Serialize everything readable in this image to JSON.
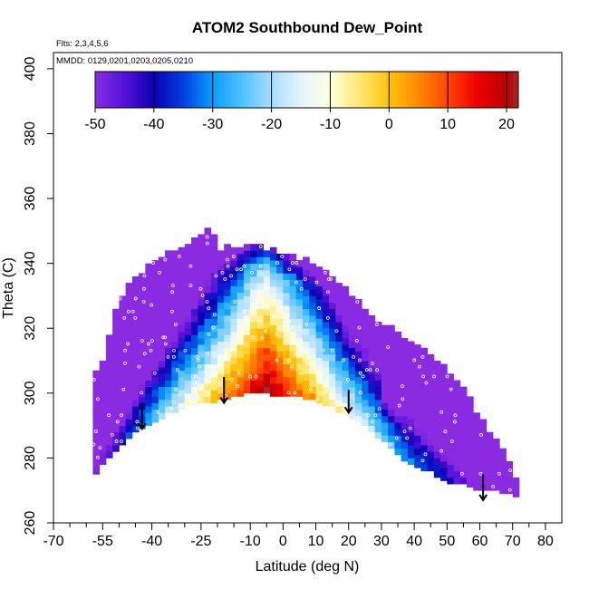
{
  "chart_data": {
    "type": "heatmap",
    "title": "ATOM2 Southbound Dew_Point",
    "flights_label": "Flts: 2,3,4,5,6",
    "dates_label": "MMDD: 0129,0201,0203,0205,0210",
    "xlabel": "Latitude (deg N)",
    "ylabel": "Theta (C)",
    "xlim": [
      -70,
      85
    ],
    "ylim": [
      260,
      405
    ],
    "x_major_ticks": [
      -70,
      -55,
      -40,
      -25,
      -10,
      0,
      10,
      20,
      30,
      40,
      50,
      60,
      70,
      80
    ],
    "x_tick_labels": [
      "-70",
      "-55",
      "-40",
      "-25",
      "-10",
      "0",
      "10",
      "20",
      "30",
      "40",
      "50",
      "60",
      "70",
      "80"
    ],
    "x_minor_ticks": [
      -65,
      -60,
      -50,
      -45,
      -35,
      -30,
      -20,
      -15,
      -5,
      5,
      15,
      25,
      35,
      45,
      55,
      65,
      75
    ],
    "y_ticks": [
      260,
      280,
      300,
      320,
      340,
      360,
      380,
      400
    ],
    "y_tick_labels": [
      "260",
      "280",
      "300",
      "320",
      "340",
      "360",
      "380",
      "400"
    ],
    "colorbar": {
      "range": [
        -50,
        22
      ],
      "ticks": [
        -50,
        -40,
        -30,
        -20,
        -10,
        0,
        10,
        20
      ],
      "tick_labels": [
        "-50",
        "-40",
        "-30",
        "-20",
        "-10",
        "0",
        "10",
        "20"
      ],
      "stops": [
        {
          "v": -50,
          "c": "#8a2be2"
        },
        {
          "v": -45,
          "c": "#5512d8"
        },
        {
          "v": -40,
          "c": "#0a00b4"
        },
        {
          "v": -35,
          "c": "#0040e0"
        },
        {
          "v": -30,
          "c": "#0a9cff"
        },
        {
          "v": -25,
          "c": "#4fc2ff"
        },
        {
          "v": -20,
          "c": "#a8dcff"
        },
        {
          "v": -15,
          "c": "#e4f4ff"
        },
        {
          "v": -10,
          "c": "#ffffe0"
        },
        {
          "v": -5,
          "c": "#ffe870"
        },
        {
          "v": 0,
          "c": "#ffc30a"
        },
        {
          "v": 5,
          "c": "#ff8a00"
        },
        {
          "v": 10,
          "c": "#ff4500"
        },
        {
          "v": 15,
          "c": "#ee0000"
        },
        {
          "v": 20,
          "c": "#b80000"
        },
        {
          "v": 22,
          "c": "#a52a2a"
        }
      ]
    },
    "domain": {
      "lat_range": [
        -58,
        72
      ],
      "lat_step": 2,
      "theta_step": 2,
      "top_boundary": [
        [
          -58,
          303
        ],
        [
          -55,
          310
        ],
        [
          -52,
          322
        ],
        [
          -48,
          331
        ],
        [
          -44,
          336
        ],
        [
          -40,
          340
        ],
        [
          -35,
          343
        ],
        [
          -30,
          345
        ],
        [
          -25,
          348
        ],
        [
          -22,
          350
        ],
        [
          -19,
          344
        ],
        [
          -15,
          345
        ],
        [
          -10,
          345
        ],
        [
          -5,
          344
        ],
        [
          0,
          342
        ],
        [
          5,
          341
        ],
        [
          10,
          339
        ],
        [
          15,
          336
        ],
        [
          20,
          331
        ],
        [
          25,
          326
        ],
        [
          30,
          321
        ],
        [
          35,
          318
        ],
        [
          40,
          314
        ],
        [
          45,
          311
        ],
        [
          50,
          307
        ],
        [
          55,
          301
        ],
        [
          60,
          292
        ],
        [
          65,
          285
        ],
        [
          70,
          276
        ],
        [
          72,
          272
        ]
      ],
      "bottom_boundary": [
        [
          -58,
          274
        ],
        [
          -55,
          278
        ],
        [
          -50,
          283
        ],
        [
          -45,
          288
        ],
        [
          -40,
          291
        ],
        [
          -35,
          294
        ],
        [
          -30,
          296
        ],
        [
          -25,
          297
        ],
        [
          -20,
          298
        ],
        [
          -15,
          299
        ],
        [
          -10,
          301
        ],
        [
          -5,
          300
        ],
        [
          0,
          299
        ],
        [
          5,
          299
        ],
        [
          10,
          298
        ],
        [
          15,
          296
        ],
        [
          20,
          293
        ],
        [
          25,
          290
        ],
        [
          30,
          286
        ],
        [
          35,
          281
        ],
        [
          40,
          278
        ],
        [
          45,
          276
        ],
        [
          50,
          273
        ],
        [
          55,
          272
        ],
        [
          60,
          270
        ],
        [
          65,
          270
        ],
        [
          70,
          269
        ],
        [
          72,
          268
        ]
      ]
    },
    "arrows": [
      {
        "lat": -43,
        "theta_top": 297,
        "theta_tip": 289
      },
      {
        "lat": -18,
        "theta_top": 305,
        "theta_tip": 297
      },
      {
        "lat": 20,
        "theta_top": 301,
        "theta_tip": 294
      },
      {
        "lat": 61,
        "theta_top": 275,
        "theta_tip": 267
      }
    ]
  }
}
